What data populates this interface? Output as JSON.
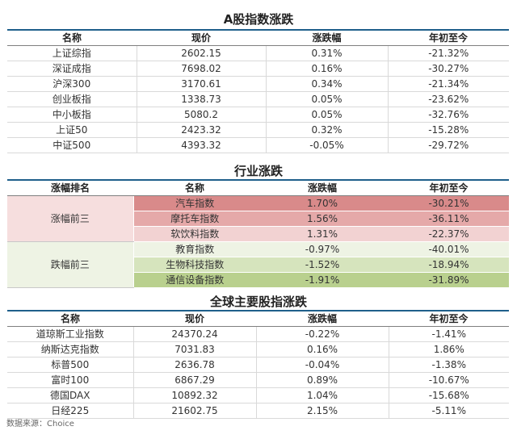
{
  "a_share": {
    "title": "A股指数涨跌",
    "headers": [
      "名称",
      "现价",
      "涨跌幅",
      "年初至今"
    ],
    "rows": [
      [
        "上证综指",
        "2602.15",
        "0.31%",
        "-21.32%"
      ],
      [
        "深证成指",
        "7698.02",
        "0.16%",
        "-30.27%"
      ],
      [
        "沪深300",
        "3170.61",
        "0.34%",
        "-21.34%"
      ],
      [
        "创业板指",
        "1338.73",
        "0.05%",
        "-23.62%"
      ],
      [
        "中小板指",
        "5080.2",
        "0.05%",
        "-32.76%"
      ],
      [
        "上证50",
        "2423.32",
        "0.32%",
        "-15.28%"
      ],
      [
        "中证500",
        "4393.32",
        "-0.05%",
        "-29.72%"
      ]
    ]
  },
  "industry": {
    "title": "行业涨跌",
    "headers": [
      "涨幅排名",
      "名称",
      "涨跌幅",
      "年初至今"
    ],
    "groups": [
      {
        "label": "涨幅前三",
        "color": "#f6dede",
        "rows": [
          {
            "name": "汽车指数",
            "change": "1.70%",
            "ytd": "-30.21%",
            "color": "#d98a8a"
          },
          {
            "name": "摩托车指数",
            "change": "1.56%",
            "ytd": "-36.11%",
            "color": "#e5a9a9"
          },
          {
            "name": "软饮料指数",
            "change": "1.31%",
            "ytd": "-22.37%",
            "color": "#f2d2d2"
          }
        ]
      },
      {
        "label": "跌幅前三",
        "color": "#eef3e4",
        "rows": [
          {
            "name": "教育指数",
            "change": "-0.97%",
            "ytd": "-40.01%",
            "color": "#eef3e4"
          },
          {
            "name": "生物科技指数",
            "change": "-1.52%",
            "ytd": "-18.94%",
            "color": "#d6e4bd"
          },
          {
            "name": "通信设备指数",
            "change": "-1.91%",
            "ytd": "-31.89%",
            "color": "#b9d08e"
          }
        ]
      }
    ]
  },
  "global": {
    "title": "全球主要股指涨跌",
    "headers": [
      "名称",
      "现价",
      "涨跌幅",
      "年初至今"
    ],
    "rows": [
      [
        "道琼斯工业指数",
        "24370.24",
        "-0.22%",
        "-1.41%"
      ],
      [
        "纳斯达克指数",
        "7031.83",
        "0.16%",
        "1.86%"
      ],
      [
        "标普500",
        "2636.78",
        "-0.04%",
        "-1.38%"
      ],
      [
        "富时100",
        "6867.29",
        "0.89%",
        "-10.67%"
      ],
      [
        "德国DAX",
        "10892.32",
        "1.04%",
        "-15.68%"
      ],
      [
        "日经225",
        "21602.75",
        "2.15%",
        "-5.11%"
      ]
    ]
  },
  "source": "数据来源：Choice",
  "colors": {
    "header_rule": "#1f5f8b",
    "up_group": "#f6dede",
    "down_group": "#eef3e4"
  }
}
